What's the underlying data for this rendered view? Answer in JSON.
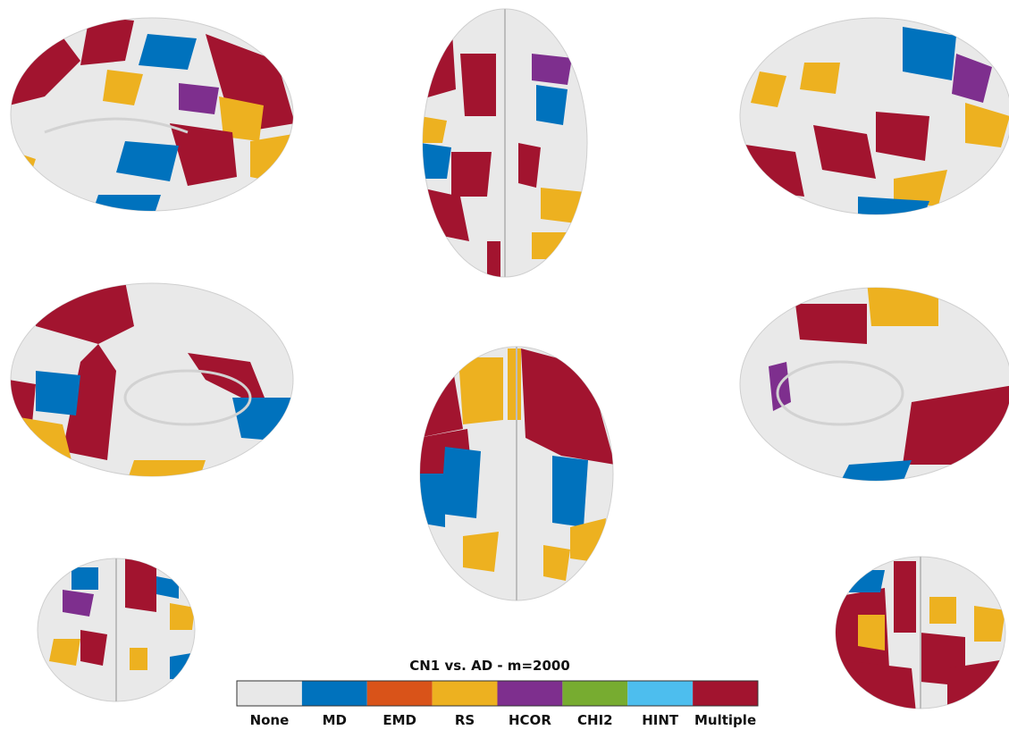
{
  "colorbar": {
    "title": "CN1 vs. AD - m=2000",
    "categories": [
      {
        "label": "None",
        "color": "#e8e8e8"
      },
      {
        "label": "MD",
        "color": "#0072bd"
      },
      {
        "label": "EMD",
        "color": "#d95319"
      },
      {
        "label": "RS",
        "color": "#edb120"
      },
      {
        "label": "HCOR",
        "color": "#7e2f8e"
      },
      {
        "label": "CHI2",
        "color": "#77ac30"
      },
      {
        "label": "HINT",
        "color": "#4dbeee"
      },
      {
        "label": "Multiple",
        "color": "#a2142f"
      }
    ]
  }
}
